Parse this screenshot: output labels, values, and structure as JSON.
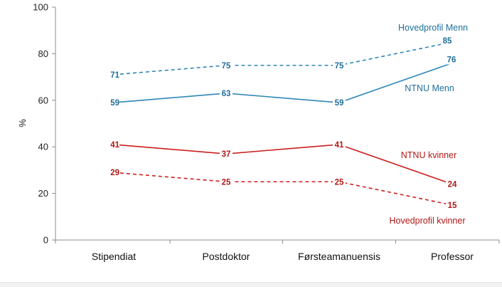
{
  "chart_data": {
    "type": "line",
    "ylabel": "%",
    "xlabel": "",
    "ylim": [
      0,
      100
    ],
    "yticks": [
      0,
      20,
      40,
      60,
      80,
      100
    ],
    "grid": false,
    "legend": "none",
    "categories": [
      "Stipendiat",
      "Postdoktor",
      "Førsteamanuensis",
      "Professor"
    ],
    "series": [
      {
        "name": "Hovedprofil Menn",
        "values": [
          71,
          75,
          75,
          85
        ],
        "color": "#2e86b8",
        "style": "dashed"
      },
      {
        "name": "NTNU Menn",
        "values": [
          59,
          63,
          59,
          76
        ],
        "color": "#2e86b8",
        "style": "solid"
      },
      {
        "name": "NTNU kvinner",
        "values": [
          41,
          37,
          41,
          24
        ],
        "color": "#c9201e",
        "style": "solid"
      },
      {
        "name": "Hovedprofil kvinner",
        "values": [
          29,
          25,
          25,
          15
        ],
        "color": "#c9201e",
        "style": "dashed"
      }
    ],
    "data_label_color": {
      "blue": "#1f6f9a",
      "red": "#b01816"
    }
  }
}
